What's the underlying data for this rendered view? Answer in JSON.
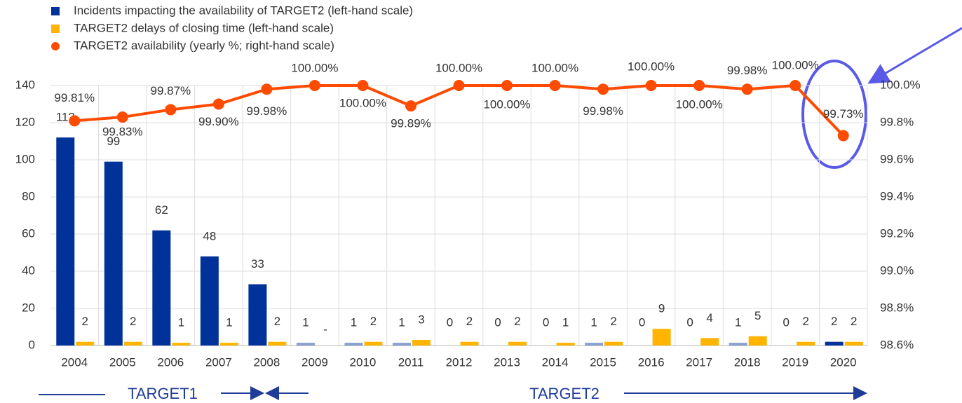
{
  "chart_data": {
    "type": "bar_line",
    "categories": [
      "2004",
      "2005",
      "2006",
      "2007",
      "2008",
      "2009",
      "2010",
      "2011",
      "2012",
      "2013",
      "2014",
      "2015",
      "2016",
      "2017",
      "2018",
      "2019",
      "2020"
    ],
    "series": [
      {
        "name": "Incidents impacting the availability of TARGET2 (left-hand scale)",
        "color": "#003299",
        "type": "bar",
        "values": [
          112,
          99,
          62,
          48,
          33,
          1,
          1,
          1,
          0,
          0,
          0,
          1,
          0,
          0,
          1,
          0,
          2
        ]
      },
      {
        "name": "TARGET2 delays of closing time (left-hand scale)",
        "color": "#ffb400",
        "type": "bar",
        "values": [
          2,
          2,
          1,
          1,
          2,
          null,
          2,
          3,
          2,
          2,
          1,
          2,
          9,
          4,
          5,
          2,
          2
        ],
        "value_labels": [
          "2",
          "2",
          "1",
          "1",
          "2",
          "-",
          "2",
          "3",
          "2",
          "2",
          "1",
          "2",
          "9",
          "4",
          "5",
          "2",
          "2"
        ]
      },
      {
        "name": "TARGET2 availability (yearly %; right-hand scale)",
        "color": "#ff4b00",
        "type": "line",
        "axis": "y2",
        "values": [
          99.81,
          99.83,
          99.87,
          99.9,
          99.98,
          100.0,
          100.0,
          99.89,
          100.0,
          100.0,
          100.0,
          99.98,
          100.0,
          100.0,
          99.98,
          100.0,
          99.73
        ],
        "value_labels": [
          "99.81%",
          "99.83%",
          "99.87%",
          "99.90%",
          "99.98%",
          "100.00%",
          "100.00%",
          "99.89%",
          "100.00%",
          "100.00%",
          "100.00%",
          "99.98%",
          "100.00%",
          "100.00%",
          "99.98%",
          "100.00%",
          "99.73%"
        ]
      }
    ],
    "ylim": [
      0,
      140
    ],
    "yticks": [
      0,
      20,
      40,
      60,
      80,
      100,
      120,
      140
    ],
    "y2lim": [
      98.6,
      100.0
    ],
    "y2ticks": [
      {
        "value": 98.6,
        "label": "98.6%"
      },
      {
        "value": 98.8,
        "label": "98.8%"
      },
      {
        "value": 99.0,
        "label": "99.0%"
      },
      {
        "value": 99.2,
        "label": "99.2%"
      },
      {
        "value": 99.4,
        "label": "99.4%"
      },
      {
        "value": 99.6,
        "label": "99.6%"
      },
      {
        "value": 99.8,
        "label": "99.8%"
      },
      {
        "value": 100.0,
        "label": "100.0%"
      }
    ],
    "grid": true,
    "annotations": [
      "TARGET1",
      "TARGET2"
    ]
  }
}
